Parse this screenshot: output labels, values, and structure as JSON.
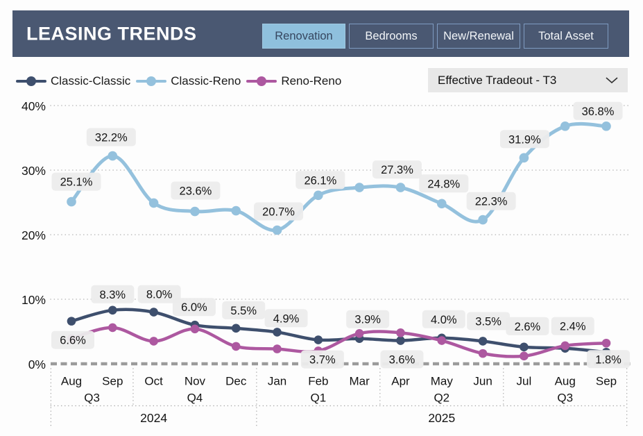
{
  "header": {
    "title": "LEASING TRENDS",
    "tabs": [
      {
        "label": "Renovation",
        "active": true
      },
      {
        "label": "Bedrooms",
        "active": false
      },
      {
        "label": "New/Renewal",
        "active": false
      },
      {
        "label": "Total Asset",
        "active": false
      }
    ]
  },
  "legend": [
    {
      "label": "Classic-Classic",
      "color": "#3e4f6d"
    },
    {
      "label": "Classic-Reno",
      "color": "#94c1dd"
    },
    {
      "label": "Reno-Reno",
      "color": "#ad58a0"
    }
  ],
  "dropdown": {
    "label": "Effective Tradeout - T3",
    "icon": "chevron-down-icon"
  },
  "chart_data": {
    "type": "line",
    "x": [
      "Aug",
      "Sep",
      "Oct",
      "Nov",
      "Dec",
      "Jan",
      "Feb",
      "Mar",
      "Apr",
      "May",
      "Jun",
      "Jul",
      "Aug",
      "Sep"
    ],
    "quarters": [
      {
        "label": "Q3",
        "from": 0,
        "to": 1
      },
      {
        "label": "Q4",
        "from": 2,
        "to": 4
      },
      {
        "label": "Q1",
        "from": 5,
        "to": 7
      },
      {
        "label": "Q2",
        "from": 8,
        "to": 10
      },
      {
        "label": "Q3",
        "from": 11,
        "to": 13
      }
    ],
    "years": [
      {
        "label": "2024",
        "from": 0,
        "to": 4
      },
      {
        "label": "2025",
        "from": 5,
        "to": 13
      }
    ],
    "ylim": [
      0,
      40
    ],
    "yticks": [
      {
        "value": 0,
        "label": "0%"
      },
      {
        "value": 10,
        "label": "10%"
      },
      {
        "value": 20,
        "label": "20%"
      },
      {
        "value": 30,
        "label": "30%"
      },
      {
        "value": 40,
        "label": "40%"
      }
    ],
    "series": [
      {
        "name": "Classic-Reno",
        "color": "#94c1dd",
        "values": [
          25.1,
          32.2,
          24.9,
          23.6,
          23.7,
          20.7,
          26.1,
          27.3,
          27.3,
          24.8,
          22.3,
          31.9,
          36.8,
          36.8
        ],
        "point_labels": [
          {
            "i": 0,
            "text": "25.1%",
            "dx": 7,
            "dy": -29
          },
          {
            "i": 1,
            "text": "32.2%",
            "dx": -2,
            "dy": -27
          },
          {
            "i": 3,
            "text": "23.6%",
            "dx": 1,
            "dy": -30
          },
          {
            "i": 5,
            "text": "20.7%",
            "dx": 2,
            "dy": -27
          },
          {
            "i": 6,
            "text": "26.1%",
            "dx": 3,
            "dy": -22
          },
          {
            "i": 8,
            "text": "27.3%",
            "dx": -5,
            "dy": -26
          },
          {
            "i": 9,
            "text": "24.8%",
            "dx": 3,
            "dy": -29
          },
          {
            "i": 10,
            "text": "22.3%",
            "dx": 12,
            "dy": -27
          },
          {
            "i": 11,
            "text": "31.9%",
            "dx": 1,
            "dy": -27
          },
          {
            "i": 13,
            "text": "36.8%",
            "dx": -12,
            "dy": -22
          }
        ]
      },
      {
        "name": "Classic-Classic",
        "color": "#3e4f6d",
        "values": [
          6.6,
          8.3,
          8.0,
          6.0,
          5.5,
          4.9,
          3.7,
          3.9,
          3.6,
          4.0,
          3.5,
          2.6,
          2.4,
          1.8
        ],
        "point_labels": [
          {
            "i": 0,
            "text": "6.6%",
            "dx": 2,
            "dy": 27
          },
          {
            "i": 1,
            "text": "8.3%",
            "dx": 0,
            "dy": -23
          },
          {
            "i": 2,
            "text": "8.0%",
            "dx": 8,
            "dy": -26
          },
          {
            "i": 3,
            "text": "6.0%",
            "dx": -1,
            "dy": -26
          },
          {
            "i": 4,
            "text": "5.5%",
            "dx": 11,
            "dy": -26
          },
          {
            "i": 5,
            "text": "4.9%",
            "dx": 13,
            "dy": -20
          },
          {
            "i": 6,
            "text": "3.7%",
            "dx": 6,
            "dy": 28
          },
          {
            "i": 7,
            "text": "3.9%",
            "dx": 12,
            "dy": -28
          },
          {
            "i": 8,
            "text": "3.6%",
            "dx": 2,
            "dy": 27
          },
          {
            "i": 9,
            "text": "4.0%",
            "dx": 3,
            "dy": -27
          },
          {
            "i": 10,
            "text": "3.5%",
            "dx": 8,
            "dy": -29
          },
          {
            "i": 11,
            "text": "2.6%",
            "dx": 5,
            "dy": -30
          },
          {
            "i": 12,
            "text": "2.4%",
            "dx": 11,
            "dy": -32
          },
          {
            "i": 13,
            "text": "1.8%",
            "dx": 3,
            "dy": 10
          }
        ]
      },
      {
        "name": "Reno-Reno",
        "color": "#ad58a0",
        "values": [
          3.9,
          5.6,
          3.5,
          5.4,
          2.7,
          2.3,
          2.0,
          4.7,
          4.8,
          3.6,
          1.6,
          1.2,
          2.8,
          3.2
        ],
        "point_labels": []
      }
    ],
    "colors": {
      "grid": "#b8b8b8",
      "zero_line": "#9b9b9b",
      "label_bg": "#ececec",
      "axis_text": "#141414"
    }
  }
}
